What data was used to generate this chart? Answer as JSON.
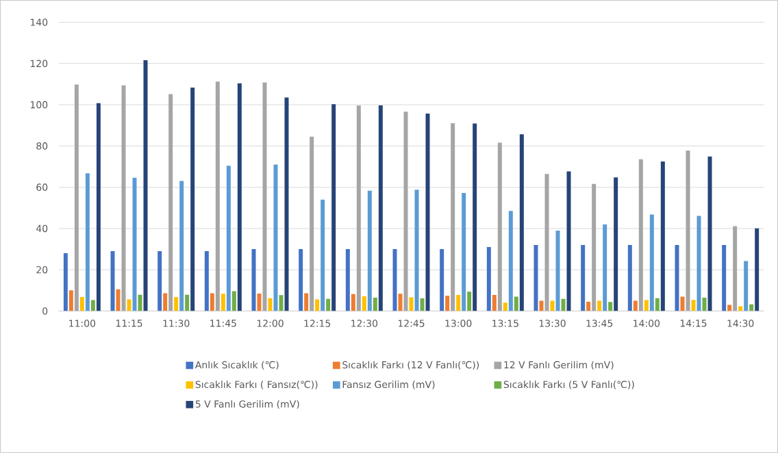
{
  "chart_data": {
    "type": "bar",
    "categories": [
      "11:00",
      "11:15",
      "11:30",
      "11:45",
      "12:00",
      "12:15",
      "12:30",
      "12:45",
      "13:00",
      "13:15",
      "13:30",
      "13:45",
      "14:00",
      "14:15",
      "14:30"
    ],
    "series": [
      {
        "name": "Anlık Sıcaklık (℃)",
        "color": "#4472c4",
        "values": [
          28,
          29,
          29,
          29,
          30,
          30,
          30,
          30,
          30,
          31,
          32,
          32,
          32,
          32,
          32
        ]
      },
      {
        "name": "Sıcaklık Farkı (12 V Fanlı(℃))",
        "color": "#ed7d31",
        "values": [
          10,
          10.5,
          8.6,
          8.6,
          8.5,
          8.6,
          8.2,
          8.4,
          7.4,
          7.8,
          5,
          4.5,
          5,
          7,
          3
        ]
      },
      {
        "name": "12 V Fanlı Gerilim (mV)",
        "color": "#a5a5a5",
        "values": [
          109.8,
          109.4,
          105.2,
          111.2,
          110.8,
          84.5,
          99.6,
          96.6,
          91.1,
          81.6,
          66.4,
          61.6,
          73.6,
          77.8,
          41.1
        ]
      },
      {
        "name": "Sıcaklık Farkı ( Fansız(℃))",
        "color": "#ffc000",
        "values": [
          6.8,
          5.6,
          6.7,
          8.4,
          6.2,
          5.6,
          7.1,
          6.6,
          7.8,
          4.1,
          5,
          5,
          5.3,
          5.4,
          2.3
        ]
      },
      {
        "name": "Fansız Gerilim (mV)",
        "color": "#5b9bd5",
        "values": [
          66.8,
          64.6,
          63,
          70.4,
          71,
          54,
          58.3,
          58.8,
          57.2,
          48.5,
          39,
          42,
          46.8,
          46.1,
          24.2
        ]
      },
      {
        "name": "Sıcaklık Farkı (5 V Fanlı(℃))",
        "color": "#70ad47",
        "values": [
          5.3,
          7.9,
          7.9,
          9.6,
          7.7,
          5.9,
          6.5,
          6.1,
          9.4,
          7,
          5.9,
          4.4,
          6.2,
          6.5,
          3.2
        ]
      },
      {
        "name": "5 V Fanlı Gerilim (mV)",
        "color": "#264478",
        "values": [
          100.8,
          121.6,
          108.3,
          110.4,
          103.5,
          100.3,
          99.7,
          95.7,
          90.9,
          85.7,
          67.7,
          64.8,
          72.5,
          74.9,
          40.1
        ]
      }
    ],
    "ylim": [
      0,
      140
    ],
    "yticks": [
      0,
      20,
      40,
      60,
      80,
      100,
      120,
      140
    ],
    "grid": "y",
    "legend": "bottom"
  }
}
